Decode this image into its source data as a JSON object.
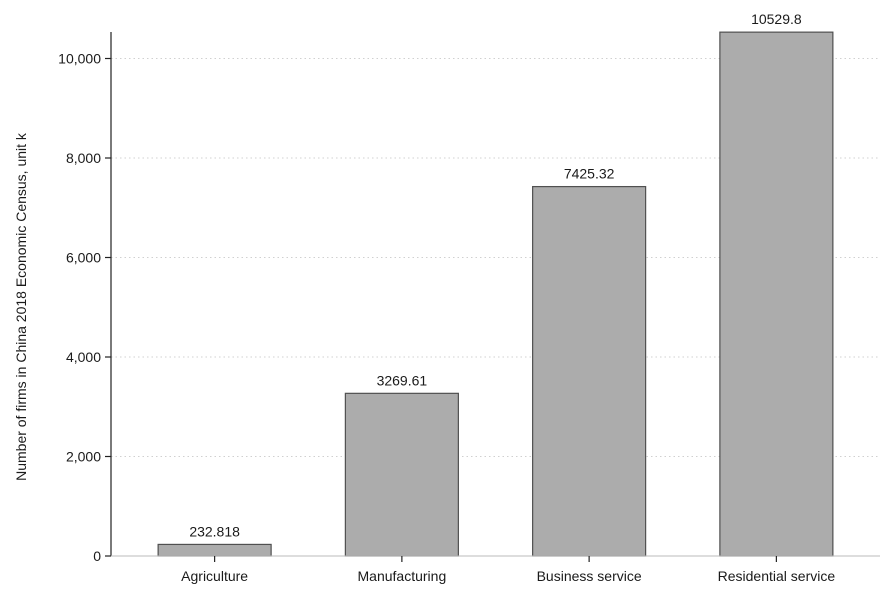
{
  "chart_data": {
    "type": "bar",
    "categories": [
      "Agriculture",
      "Manufacturing",
      "Business service",
      "Residential service"
    ],
    "values": [
      232.818,
      3269.61,
      7425.32,
      10529.8
    ],
    "data_labels": [
      "232.818",
      "3269.61",
      "7425.32",
      "10529.8"
    ],
    "title": "",
    "xlabel": "",
    "ylabel": "Number of firms in China 2018 Economic Census, unit k",
    "ylim": [
      0,
      10600
    ],
    "yticks": [
      0,
      2000,
      4000,
      6000,
      8000,
      10000
    ],
    "ytick_labels": [
      "0",
      "2,000",
      "4,000",
      "6,000",
      "8,000",
      "10,000"
    ],
    "grid": true,
    "bar_color": "#acacac",
    "bar_edge_color": "#505050"
  }
}
